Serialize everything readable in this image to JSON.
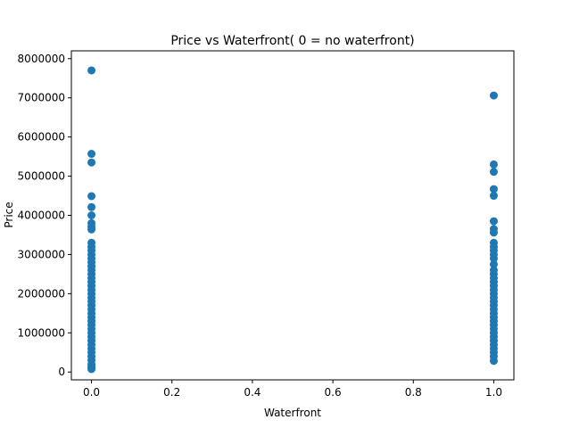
{
  "chart_data": {
    "type": "scatter",
    "title": "Price  vs Waterfront( 0 = no waterfront)",
    "xlabel": "Waterfront",
    "ylabel": "Price",
    "xlim": [
      -0.05,
      1.05
    ],
    "ylim": [
      -200000,
      8200000
    ],
    "xticks": [
      0.0,
      0.2,
      0.4,
      0.6,
      0.8,
      1.0
    ],
    "xtick_labels": [
      "0.0",
      "0.2",
      "0.4",
      "0.6",
      "0.8",
      "1.0"
    ],
    "yticks": [
      0,
      1000000,
      2000000,
      3000000,
      4000000,
      5000000,
      6000000,
      7000000,
      8000000
    ],
    "ytick_labels": [
      "0",
      "1000000",
      "2000000",
      "3000000",
      "4000000",
      "5000000",
      "6000000",
      "7000000",
      "8000000"
    ],
    "grid": false,
    "marker_color": "#1f77b4",
    "series": [
      {
        "x": 0,
        "values": [
          7700000,
          5570000,
          5350000,
          4490000,
          4210000,
          4000000,
          3800000,
          3710000,
          3640000,
          3300000,
          3200000,
          3100000,
          3000000,
          2900000,
          2800000,
          2700000,
          2600000,
          2500000,
          2400000,
          2300000,
          2200000,
          2100000,
          2000000,
          1900000,
          1800000,
          1700000,
          1600000,
          1500000,
          1400000,
          1300000,
          1200000,
          1100000,
          1000000,
          900000,
          800000,
          700000,
          600000,
          500000,
          400000,
          300000,
          200000,
          150000,
          100000,
          75000
        ]
      },
      {
        "x": 1,
        "values": [
          7060000,
          5300000,
          5110000,
          4670000,
          4500000,
          3850000,
          3650000,
          3560000,
          3300000,
          3200000,
          3100000,
          3000000,
          2900000,
          2750000,
          2600000,
          2500000,
          2400000,
          2300000,
          2200000,
          2100000,
          2000000,
          1900000,
          1800000,
          1700000,
          1600000,
          1500000,
          1400000,
          1300000,
          1200000,
          1100000,
          1000000,
          900000,
          800000,
          700000,
          600000,
          500000,
          400000,
          285000
        ]
      }
    ]
  }
}
